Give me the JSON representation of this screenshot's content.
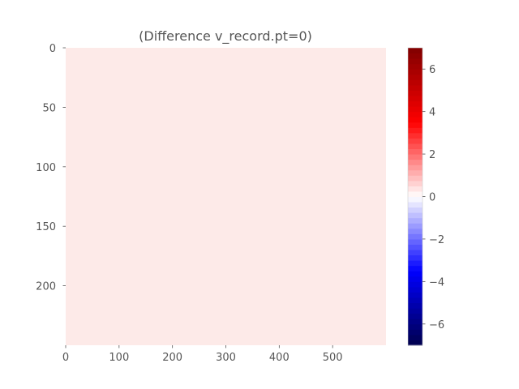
{
  "chart_data": {
    "type": "heatmap",
    "title": "(Difference v_record.pt=0)",
    "xlabel": "",
    "ylabel": "",
    "xlim": [
      0,
      600
    ],
    "ylim": [
      250,
      0
    ],
    "x_ticks": [
      0,
      100,
      200,
      300,
      400,
      500
    ],
    "x_tick_labels": [
      "0",
      "100",
      "200",
      "300",
      "400",
      "500"
    ],
    "y_ticks": [
      0,
      50,
      100,
      150,
      200
    ],
    "y_tick_labels": [
      "0",
      "50",
      "100",
      "150",
      "200"
    ],
    "field_value": 0.4,
    "field_color": "#fdeae8",
    "colorbar": {
      "colormap": "seismic",
      "range": [
        -7,
        7
      ],
      "ticks": [
        -6,
        -4,
        -2,
        0,
        2,
        4,
        6
      ],
      "tick_labels": [
        "−6",
        "−4",
        "−2",
        "0",
        "2",
        "4",
        "6"
      ],
      "levels": 56
    },
    "grid": false
  }
}
